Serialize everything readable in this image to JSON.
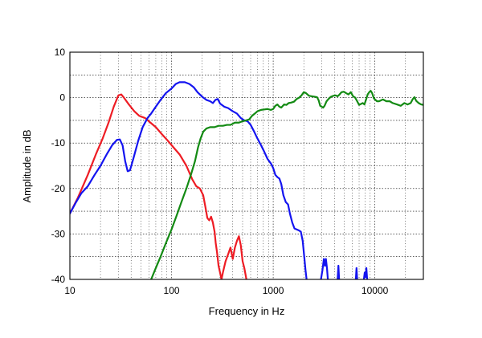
{
  "chart_data": {
    "type": "line",
    "title": "",
    "xlabel": "Frequency in Hz",
    "ylabel": "Amplitude in dB",
    "x_scale": "log",
    "xlim": [
      10,
      30000
    ],
    "ylim": [
      -40,
      10
    ],
    "grid": true,
    "x_ticks": [
      {
        "value": 10,
        "label": "10"
      },
      {
        "value": 100,
        "label": "100"
      },
      {
        "value": 1000,
        "label": "1000"
      },
      {
        "value": 10000,
        "label": "10000"
      }
    ],
    "y_ticks": [
      {
        "value": 10,
        "label": "10"
      },
      {
        "value": 0,
        "label": "0"
      },
      {
        "value": -10,
        "label": "-10"
      },
      {
        "value": -20,
        "label": "-20"
      },
      {
        "value": -30,
        "label": "-30"
      },
      {
        "value": -40,
        "label": "-40"
      }
    ],
    "series": [
      {
        "color": "#ee1c24",
        "points": [
          [
            10,
            -25.5
          ],
          [
            12,
            -22
          ],
          [
            15,
            -17
          ],
          [
            18,
            -12.5
          ],
          [
            21,
            -9
          ],
          [
            24,
            -5.5
          ],
          [
            27,
            -2
          ],
          [
            30,
            0.5
          ],
          [
            32,
            0.7
          ],
          [
            34,
            0
          ],
          [
            38,
            -1.5
          ],
          [
            43,
            -3
          ],
          [
            48,
            -4
          ],
          [
            55,
            -4.5
          ],
          [
            62,
            -5.5
          ],
          [
            70,
            -6.5
          ],
          [
            80,
            -8
          ],
          [
            92,
            -9.5
          ],
          [
            105,
            -11
          ],
          [
            120,
            -12.5
          ],
          [
            140,
            -15
          ],
          [
            160,
            -18
          ],
          [
            175,
            -19.5
          ],
          [
            190,
            -20
          ],
          [
            205,
            -21.5
          ],
          [
            215,
            -24
          ],
          [
            225,
            -26.5
          ],
          [
            235,
            -27
          ],
          [
            245,
            -26.2
          ],
          [
            255,
            -27.5
          ],
          [
            265,
            -29.5
          ],
          [
            272,
            -32
          ],
          [
            280,
            -34
          ],
          [
            290,
            -37
          ],
          [
            300,
            -38.5
          ],
          [
            310,
            -40
          ],
          [
            320,
            -38.5
          ],
          [
            340,
            -36
          ],
          [
            360,
            -34.5
          ],
          [
            380,
            -33
          ],
          [
            400,
            -35.5
          ],
          [
            420,
            -33
          ],
          [
            440,
            -31.5
          ],
          [
            460,
            -30.5
          ],
          [
            480,
            -32.5
          ],
          [
            500,
            -36
          ],
          [
            520,
            -37.5
          ],
          [
            545,
            -40
          ]
        ]
      },
      {
        "color": "#1414f0",
        "points": [
          [
            10,
            -25.5
          ],
          [
            11.5,
            -23
          ],
          [
            13,
            -21
          ],
          [
            15,
            -19.5
          ],
          [
            17.5,
            -17
          ],
          [
            20,
            -15
          ],
          [
            23,
            -12.5
          ],
          [
            26,
            -10.5
          ],
          [
            29,
            -9.3
          ],
          [
            31,
            -9.2
          ],
          [
            33,
            -10.5
          ],
          [
            35,
            -14
          ],
          [
            37,
            -16.2
          ],
          [
            39,
            -16
          ],
          [
            42,
            -13.5
          ],
          [
            47,
            -9.5
          ],
          [
            52,
            -6.5
          ],
          [
            58,
            -4.5
          ],
          [
            63,
            -3.5
          ],
          [
            70,
            -2
          ],
          [
            78,
            -0.5
          ],
          [
            88,
            1
          ],
          [
            100,
            2
          ],
          [
            110,
            3
          ],
          [
            120,
            3.4
          ],
          [
            135,
            3.4
          ],
          [
            150,
            3
          ],
          [
            165,
            2.3
          ],
          [
            180,
            1.2
          ],
          [
            200,
            0.2
          ],
          [
            220,
            -0.5
          ],
          [
            240,
            -0.8
          ],
          [
            255,
            -1.2
          ],
          [
            270,
            -0.5
          ],
          [
            285,
            -0.3
          ],
          [
            300,
            -1.3
          ],
          [
            330,
            -2
          ],
          [
            360,
            -2.3
          ],
          [
            400,
            -3
          ],
          [
            440,
            -3.5
          ],
          [
            480,
            -4.5
          ],
          [
            520,
            -5
          ],
          [
            560,
            -5.2
          ],
          [
            600,
            -6
          ],
          [
            650,
            -7.5
          ],
          [
            700,
            -9
          ],
          [
            760,
            -10.5
          ],
          [
            820,
            -12
          ],
          [
            880,
            -13.5
          ],
          [
            950,
            -14.5
          ],
          [
            1000,
            -15.5
          ],
          [
            1050,
            -17
          ],
          [
            1100,
            -17.5
          ],
          [
            1150,
            -17.8
          ],
          [
            1200,
            -19
          ],
          [
            1260,
            -21.5
          ],
          [
            1330,
            -23
          ],
          [
            1400,
            -23.5
          ],
          [
            1460,
            -25.5
          ],
          [
            1540,
            -27.5
          ],
          [
            1620,
            -28.8
          ],
          [
            1700,
            -29
          ],
          [
            1780,
            -29.2
          ],
          [
            1870,
            -29.5
          ],
          [
            1950,
            -31.5
          ],
          [
            2020,
            -35
          ],
          [
            2080,
            -38
          ],
          [
            2130,
            -40
          ]
        ]
      },
      {
        "color": "#1414f0",
        "points": [
          [
            2950,
            -40
          ],
          [
            3050,
            -38
          ],
          [
            3150,
            -35.5
          ],
          [
            3230,
            -37
          ],
          [
            3300,
            -35.5
          ],
          [
            3380,
            -37.5
          ],
          [
            3450,
            -40
          ]
        ]
      },
      {
        "color": "#1414f0",
        "points": [
          [
            4300,
            -40
          ],
          [
            4380,
            -37
          ],
          [
            4450,
            -40
          ]
        ]
      },
      {
        "color": "#1414f0",
        "points": [
          [
            6500,
            -40
          ],
          [
            6600,
            -37.5
          ],
          [
            6700,
            -40
          ]
        ]
      },
      {
        "color": "#1414f0",
        "points": [
          [
            7800,
            -40
          ],
          [
            7950,
            -38.5
          ],
          [
            8100,
            -39.5
          ],
          [
            8250,
            -37.5
          ],
          [
            8400,
            -40
          ]
        ]
      },
      {
        "color": "#138a13",
        "points": [
          [
            63,
            -40
          ],
          [
            70,
            -37.5
          ],
          [
            78,
            -35
          ],
          [
            88,
            -32
          ],
          [
            100,
            -29
          ],
          [
            112,
            -26
          ],
          [
            125,
            -23
          ],
          [
            140,
            -20
          ],
          [
            155,
            -17
          ],
          [
            170,
            -14
          ],
          [
            182,
            -11
          ],
          [
            193,
            -9
          ],
          [
            205,
            -7.5
          ],
          [
            220,
            -6.8
          ],
          [
            240,
            -6.5
          ],
          [
            265,
            -6.5
          ],
          [
            290,
            -6.2
          ],
          [
            320,
            -6.2
          ],
          [
            350,
            -6
          ],
          [
            380,
            -6
          ],
          [
            420,
            -5.5
          ],
          [
            460,
            -5.5
          ],
          [
            500,
            -5.2
          ],
          [
            540,
            -5
          ],
          [
            580,
            -4.8
          ],
          [
            620,
            -4
          ],
          [
            660,
            -3.5
          ],
          [
            700,
            -3
          ],
          [
            760,
            -2.7
          ],
          [
            820,
            -2.6
          ],
          [
            880,
            -2.5
          ],
          [
            950,
            -2.7
          ],
          [
            1000,
            -2.5
          ],
          [
            1050,
            -1.8
          ],
          [
            1100,
            -1.5
          ],
          [
            1150,
            -2
          ],
          [
            1200,
            -2.2
          ],
          [
            1280,
            -1.5
          ],
          [
            1350,
            -1.6
          ],
          [
            1420,
            -1.2
          ],
          [
            1500,
            -1.1
          ],
          [
            1600,
            -0.9
          ],
          [
            1700,
            -0.3
          ],
          [
            1800,
            0
          ],
          [
            1900,
            0.5
          ],
          [
            2000,
            1.2
          ],
          [
            2100,
            1
          ],
          [
            2250,
            0.4
          ],
          [
            2400,
            0.3
          ],
          [
            2550,
            0.2
          ],
          [
            2700,
            0.1
          ],
          [
            2800,
            -0.6
          ],
          [
            2900,
            -1.8
          ],
          [
            3000,
            -2
          ],
          [
            3100,
            -2.2
          ],
          [
            3200,
            -1.8
          ],
          [
            3350,
            -0.8
          ],
          [
            3500,
            -0.3
          ],
          [
            3700,
            0.2
          ],
          [
            3900,
            0.4
          ],
          [
            4100,
            0.5
          ],
          [
            4300,
            0.3
          ],
          [
            4500,
            0.7
          ],
          [
            4700,
            1.2
          ],
          [
            4950,
            1.3
          ],
          [
            5200,
            1
          ],
          [
            5500,
            0.7
          ],
          [
            5800,
            1.2
          ],
          [
            6100,
            0.3
          ],
          [
            6400,
            0
          ],
          [
            6700,
            -0.8
          ],
          [
            7000,
            -1.6
          ],
          [
            7300,
            -1.4
          ],
          [
            7600,
            -1.2
          ],
          [
            7900,
            -1.5
          ],
          [
            8200,
            -0.4
          ],
          [
            8500,
            0.7
          ],
          [
            8800,
            1.2
          ],
          [
            9100,
            1.5
          ],
          [
            9400,
            1
          ],
          [
            9800,
            -0.2
          ],
          [
            10500,
            -0.8
          ],
          [
            11000,
            -0.8
          ],
          [
            12000,
            -0.4
          ],
          [
            13000,
            -0.8
          ],
          [
            14000,
            -0.8
          ],
          [
            15000,
            -1.2
          ],
          [
            16500,
            -1.5
          ],
          [
            18000,
            -1.8
          ],
          [
            19500,
            -1.2
          ],
          [
            21000,
            -1.5
          ],
          [
            22500,
            -1.2
          ],
          [
            23500,
            -0.4
          ],
          [
            24500,
            0.1
          ],
          [
            25500,
            -0.7
          ],
          [
            27000,
            -1.2
          ],
          [
            28500,
            -1.5
          ],
          [
            30000,
            -1.6
          ]
        ]
      }
    ]
  }
}
